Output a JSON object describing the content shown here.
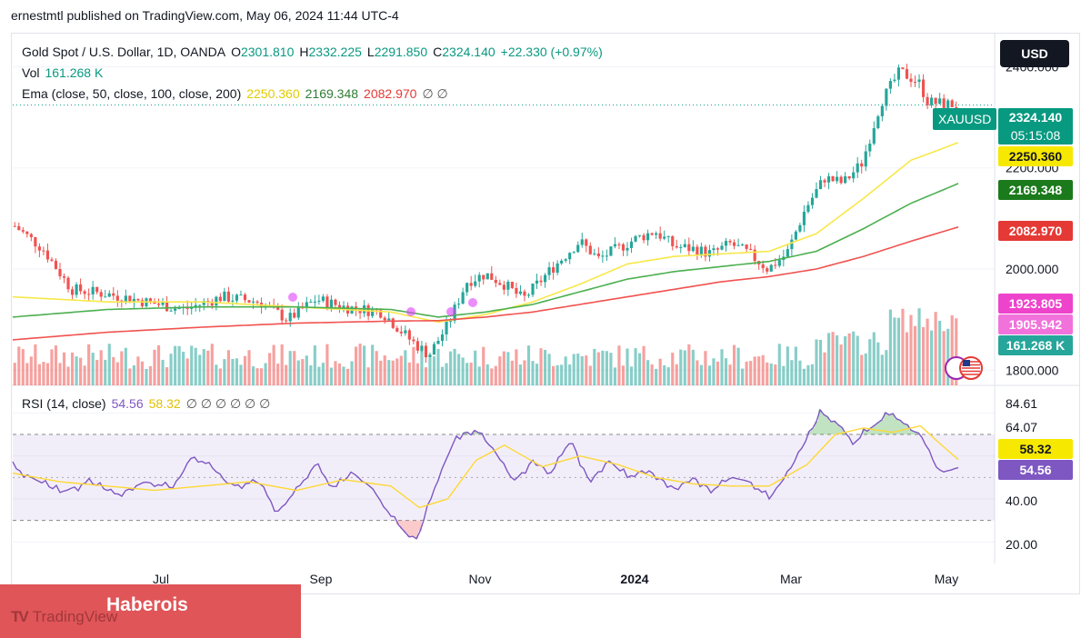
{
  "header": {
    "published": "ernestmtl published on TradingView.com, May 06, 2024 11:44 UTC-4"
  },
  "legend": {
    "symbol": "Gold Spot / U.S. Dollar, 1D, OANDA",
    "open_label": "O",
    "open": "2301.810",
    "high_label": "H",
    "high": "2332.225",
    "low_label": "L",
    "low": "2291.850",
    "close_label": "C",
    "close": "2324.140",
    "change": "+22.330 (+0.97%)",
    "vol_label": "Vol",
    "vol": "161.268 K",
    "ema_label": "Ema (close, 50, close, 100, close, 200)",
    "ema50": "2250.360",
    "ema100": "2169.348",
    "ema200": "2082.970",
    "ema_extra": "∅ ∅",
    "rsi_label": "RSI (14, close)",
    "rsi": "54.56",
    "rsi_ma": "58.32",
    "rsi_extra": "∅ ∅ ∅ ∅ ∅ ∅"
  },
  "currency": "USD",
  "symbol_tag": "XAUUSD",
  "last_price": "2324.140",
  "countdown": "05:15:08",
  "tags": {
    "ema50": "2250.360",
    "ema100": "2169.348",
    "ema200": "2082.970",
    "p1": "1923.805",
    "p2": "1905.942",
    "vol": "161.268 K",
    "rsi_ma": "58.32",
    "rsi": "54.56"
  },
  "colors": {
    "up": "#26a69a",
    "down": "#ef5350",
    "ema50": "#f7e84a",
    "ema100": "#4caf50",
    "ema200": "#f05350",
    "rsi": "#7e57c2",
    "rsi_ma": "#fdd835",
    "pink": "#e040fb"
  },
  "brand": {
    "logo": "TradingView",
    "name": "Haberois"
  },
  "chart_data": [
    {
      "type": "candlestick",
      "title": "Gold Spot / U.S. Dollar, 1D, OANDA",
      "x_ticks": [
        "Jul",
        "Sep",
        "Nov",
        "2024",
        "Mar",
        "May"
      ],
      "y_ticks": [
        "2400.000",
        "2200.000",
        "2000.000",
        "1800.000"
      ],
      "ylim": [
        1770,
        2460
      ],
      "series": [
        {
          "name": "Price",
          "anchors": [
            [
              0,
              2085
            ],
            [
              0.03,
              2040
            ],
            [
              0.06,
              1960
            ],
            [
              0.1,
              1950
            ],
            [
              0.14,
              1935
            ],
            [
              0.18,
              1920
            ],
            [
              0.22,
              1945
            ],
            [
              0.26,
              1935
            ],
            [
              0.29,
              1900
            ],
            [
              0.32,
              1940
            ],
            [
              0.35,
              1925
            ],
            [
              0.39,
              1915
            ],
            [
              0.42,
              1860
            ],
            [
              0.44,
              1830
            ],
            [
              0.46,
              1890
            ],
            [
              0.48,
              1975
            ],
            [
              0.5,
              1990
            ],
            [
              0.52,
              1970
            ],
            [
              0.54,
              1940
            ],
            [
              0.57,
              2000
            ],
            [
              0.6,
              2055
            ],
            [
              0.62,
              2020
            ],
            [
              0.64,
              2040
            ],
            [
              0.66,
              2060
            ],
            [
              0.68,
              2075
            ],
            [
              0.7,
              2045
            ],
            [
              0.72,
              2040
            ],
            [
              0.74,
              2030
            ],
            [
              0.76,
              2050
            ],
            [
              0.78,
              2030
            ],
            [
              0.8,
              2000
            ],
            [
              0.82,
              2030
            ],
            [
              0.84,
              2120
            ],
            [
              0.86,
              2180
            ],
            [
              0.88,
              2170
            ],
            [
              0.9,
              2210
            ],
            [
              0.92,
              2330
            ],
            [
              0.94,
              2390
            ],
            [
              0.96,
              2370
            ],
            [
              0.97,
              2330
            ],
            [
              1,
              2324
            ]
          ]
        },
        {
          "name": "EMA 50",
          "anchors": [
            [
              0,
              1945
            ],
            [
              0.1,
              1935
            ],
            [
              0.2,
              1935
            ],
            [
              0.3,
              1925
            ],
            [
              0.4,
              1915
            ],
            [
              0.45,
              1895
            ],
            [
              0.5,
              1910
            ],
            [
              0.55,
              1935
            ],
            [
              0.6,
              1970
            ],
            [
              0.65,
              2010
            ],
            [
              0.7,
              2025
            ],
            [
              0.75,
              2030
            ],
            [
              0.8,
              2035
            ],
            [
              0.85,
              2070
            ],
            [
              0.9,
              2140
            ],
            [
              0.95,
              2215
            ],
            [
              1,
              2250
            ]
          ]
        },
        {
          "name": "EMA 100",
          "anchors": [
            [
              0,
              1905
            ],
            [
              0.1,
              1920
            ],
            [
              0.2,
              1925
            ],
            [
              0.3,
              1925
            ],
            [
              0.4,
              1920
            ],
            [
              0.45,
              1905
            ],
            [
              0.5,
              1915
            ],
            [
              0.55,
              1930
            ],
            [
              0.6,
              1955
            ],
            [
              0.65,
              1980
            ],
            [
              0.7,
              1995
            ],
            [
              0.75,
              2005
            ],
            [
              0.8,
              2015
            ],
            [
              0.85,
              2035
            ],
            [
              0.9,
              2080
            ],
            [
              0.95,
              2130
            ],
            [
              1,
              2169
            ]
          ]
        },
        {
          "name": "EMA 200",
          "anchors": [
            [
              0,
              1860
            ],
            [
              0.1,
              1875
            ],
            [
              0.2,
              1885
            ],
            [
              0.3,
              1893
            ],
            [
              0.4,
              1897
            ],
            [
              0.45,
              1898
            ],
            [
              0.5,
              1905
            ],
            [
              0.55,
              1915
            ],
            [
              0.6,
              1930
            ],
            [
              0.65,
              1945
            ],
            [
              0.7,
              1960
            ],
            [
              0.75,
              1975
            ],
            [
              0.8,
              1985
            ],
            [
              0.85,
              2000
            ],
            [
              0.9,
              2025
            ],
            [
              0.95,
              2055
            ],
            [
              1,
              2083
            ]
          ]
        }
      ]
    },
    {
      "type": "line",
      "title": "RSI (14, close)",
      "y_ticks": [
        "84.61",
        "64.07",
        "40.00",
        "20.00"
      ],
      "ylim": [
        10,
        92
      ],
      "bands": [
        30,
        70
      ],
      "series": [
        {
          "name": "RSI",
          "anchors": [
            [
              0,
              55
            ],
            [
              0.02,
              50
            ],
            [
              0.05,
              43
            ],
            [
              0.08,
              48
            ],
            [
              0.11,
              42
            ],
            [
              0.14,
              48
            ],
            [
              0.17,
              45
            ],
            [
              0.19,
              60
            ],
            [
              0.21,
              55
            ],
            [
              0.23,
              46
            ],
            [
              0.26,
              48
            ],
            [
              0.28,
              34
            ],
            [
              0.3,
              44
            ],
            [
              0.32,
              56
            ],
            [
              0.34,
              45
            ],
            [
              0.36,
              52
            ],
            [
              0.38,
              45
            ],
            [
              0.4,
              32
            ],
            [
              0.42,
              22
            ],
            [
              0.43,
              24
            ],
            [
              0.45,
              50
            ],
            [
              0.47,
              70
            ],
            [
              0.49,
              72
            ],
            [
              0.51,
              62
            ],
            [
              0.53,
              48
            ],
            [
              0.55,
              58
            ],
            [
              0.57,
              52
            ],
            [
              0.59,
              68
            ],
            [
              0.61,
              48
            ],
            [
              0.63,
              58
            ],
            [
              0.65,
              50
            ],
            [
              0.67,
              54
            ],
            [
              0.7,
              45
            ],
            [
              0.72,
              50
            ],
            [
              0.74,
              44
            ],
            [
              0.76,
              50
            ],
            [
              0.78,
              48
            ],
            [
              0.8,
              40
            ],
            [
              0.82,
              52
            ],
            [
              0.84,
              68
            ],
            [
              0.855,
              80
            ],
            [
              0.87,
              76
            ],
            [
              0.89,
              66
            ],
            [
              0.91,
              74
            ],
            [
              0.93,
              80
            ],
            [
              0.95,
              72
            ],
            [
              0.96,
              70
            ],
            [
              0.98,
              52
            ],
            [
              1,
              54.56
            ]
          ]
        },
        {
          "name": "RSI MA",
          "anchors": [
            [
              0,
              52
            ],
            [
              0.05,
              48
            ],
            [
              0.1,
              46
            ],
            [
              0.15,
              44
            ],
            [
              0.2,
              46
            ],
            [
              0.25,
              48
            ],
            [
              0.3,
              44
            ],
            [
              0.35,
              49
            ],
            [
              0.4,
              46
            ],
            [
              0.43,
              36
            ],
            [
              0.46,
              40
            ],
            [
              0.49,
              58
            ],
            [
              0.52,
              65
            ],
            [
              0.56,
              55
            ],
            [
              0.6,
              60
            ],
            [
              0.64,
              56
            ],
            [
              0.68,
              50
            ],
            [
              0.72,
              47
            ],
            [
              0.76,
              46
            ],
            [
              0.8,
              46
            ],
            [
              0.84,
              56
            ],
            [
              0.87,
              70
            ],
            [
              0.9,
              73
            ],
            [
              0.93,
              71
            ],
            [
              0.96,
              74
            ],
            [
              0.98,
              66
            ],
            [
              1,
              58.32
            ]
          ]
        }
      ]
    }
  ]
}
